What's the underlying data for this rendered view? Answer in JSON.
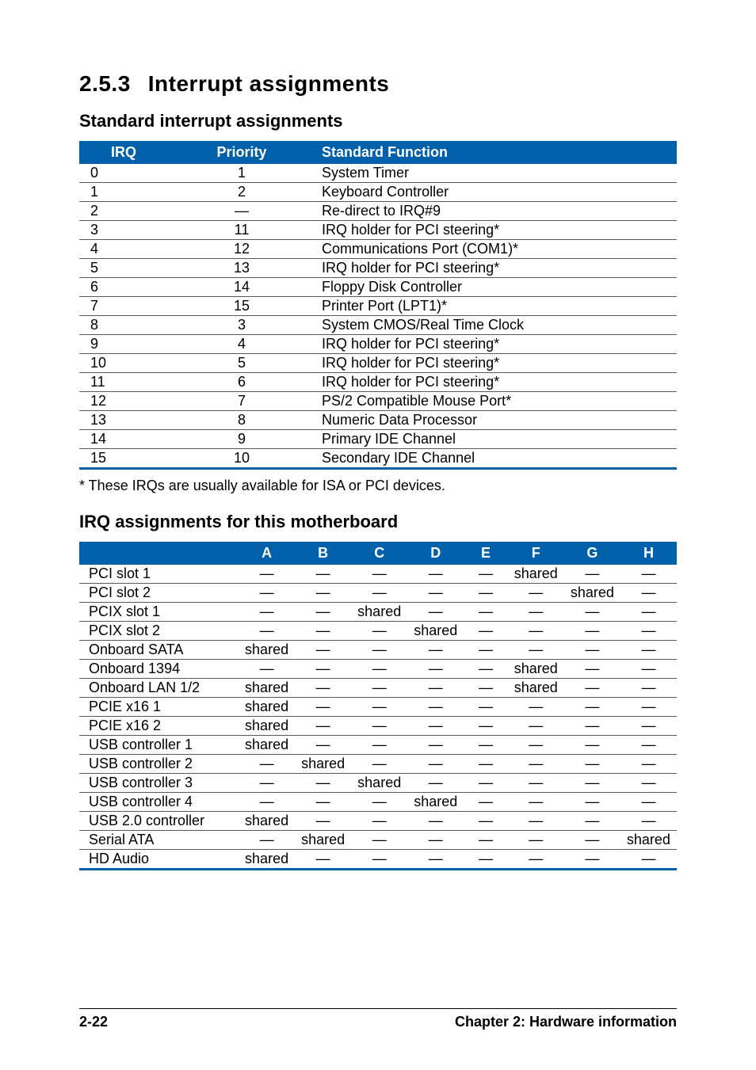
{
  "section": {
    "number": "2.5.3",
    "title": "Interrupt assignments",
    "sub1": "Standard interrupt assignments",
    "sub2": "IRQ assignments for this motherboard"
  },
  "table1": {
    "headers": {
      "irq": "IRQ",
      "priority": "Priority",
      "func": "Standard Function"
    },
    "rows": [
      {
        "irq": "0",
        "pri": "1",
        "func": "System Timer"
      },
      {
        "irq": "1",
        "pri": "2",
        "func": "Keyboard Controller"
      },
      {
        "irq": "2",
        "pri": "—",
        "func": "Re-direct to IRQ#9"
      },
      {
        "irq": "3",
        "pri": "11",
        "func": "IRQ holder for PCI steering*"
      },
      {
        "irq": "4",
        "pri": "12",
        "func": "Communications Port (COM1)*"
      },
      {
        "irq": "5",
        "pri": "13",
        "func": "IRQ holder for PCI steering*"
      },
      {
        "irq": "6",
        "pri": "14",
        "func": "Floppy Disk Controller"
      },
      {
        "irq": "7",
        "pri": "15",
        "func": "Printer Port (LPT1)*"
      },
      {
        "irq": "8",
        "pri": "3",
        "func": "System CMOS/Real Time Clock"
      },
      {
        "irq": "9",
        "pri": "4",
        "func": "IRQ holder for PCI steering*"
      },
      {
        "irq": "10",
        "pri": "5",
        "func": "IRQ holder for PCI steering*"
      },
      {
        "irq": "11",
        "pri": "6",
        "func": "IRQ holder for PCI steering*"
      },
      {
        "irq": "12",
        "pri": "7",
        "func": "PS/2 Compatible Mouse Port*"
      },
      {
        "irq": "13",
        "pri": "8",
        "func": "Numeric Data Processor"
      },
      {
        "irq": "14",
        "pri": "9",
        "func": "Primary IDE Channel"
      },
      {
        "irq": "15",
        "pri": "10",
        "func": "Secondary IDE Channel"
      }
    ]
  },
  "note": "* These IRQs are usually available for ISA or PCI devices.",
  "table2": {
    "columns": [
      "A",
      "B",
      "C",
      "D",
      "E",
      "F",
      "G",
      "H"
    ],
    "rows": [
      {
        "label": "PCI slot 1",
        "cells": [
          "—",
          "—",
          "—",
          "—",
          "—",
          "shared",
          "—",
          "—"
        ]
      },
      {
        "label": "PCI slot 2",
        "cells": [
          "—",
          "—",
          "—",
          "—",
          "—",
          "—",
          "shared",
          "—"
        ]
      },
      {
        "label": "PCIX slot 1",
        "cells": [
          "—",
          "—",
          "shared",
          "—",
          "—",
          "—",
          "—",
          "—"
        ]
      },
      {
        "label": "PCIX slot 2",
        "cells": [
          "—",
          "—",
          "—",
          "shared",
          "—",
          "—",
          "—",
          "—"
        ]
      },
      {
        "label": "Onboard SATA",
        "cells": [
          "shared",
          "—",
          "—",
          "—",
          "—",
          "—",
          "—",
          "—"
        ]
      },
      {
        "label": "Onboard 1394",
        "cells": [
          "—",
          "—",
          "—",
          "—",
          "—",
          "shared",
          "—",
          "—"
        ]
      },
      {
        "label": "Onboard LAN 1/2",
        "cells": [
          "shared",
          "—",
          "—",
          "—",
          "—",
          "shared",
          "—",
          "—"
        ]
      },
      {
        "label": "PCIE x16 1",
        "cells": [
          "shared",
          "—",
          "—",
          "—",
          "—",
          "—",
          "—",
          "—"
        ]
      },
      {
        "label": "PCIE x16 2",
        "cells": [
          "shared",
          "—",
          "—",
          "—",
          "—",
          "—",
          "—",
          "—"
        ]
      },
      {
        "label": "USB controller 1",
        "cells": [
          "shared",
          "—",
          "—",
          "—",
          "—",
          "—",
          "—",
          "—"
        ]
      },
      {
        "label": "USB controller 2",
        "cells": [
          "—",
          "shared",
          "—",
          "—",
          "—",
          "—",
          "—",
          "—"
        ]
      },
      {
        "label": "USB controller 3",
        "cells": [
          "—",
          "—",
          "shared",
          "—",
          "—",
          "—",
          "—",
          "—"
        ]
      },
      {
        "label": "USB controller 4",
        "cells": [
          "—",
          "—",
          "—",
          "shared",
          "—",
          "—",
          "—",
          "—"
        ]
      },
      {
        "label": "USB 2.0 controller",
        "cells": [
          "shared",
          "—",
          "—",
          "—",
          "—",
          "—",
          "—",
          "—"
        ]
      },
      {
        "label": "Serial ATA",
        "cells": [
          "—",
          "shared",
          "—",
          "—",
          "—",
          "—",
          "—",
          "shared"
        ]
      },
      {
        "label": "HD Audio",
        "cells": [
          "shared",
          "—",
          "—",
          "—",
          "—",
          "—",
          "—",
          "—"
        ]
      }
    ]
  },
  "footer": {
    "left": "2-22",
    "right": "Chapter 2: Hardware information"
  },
  "style": {
    "header_bg": "#0060a9",
    "header_fg": "#ffffff",
    "row_border": "#5a5a5a",
    "bottom_border": "#0060a9",
    "body_font_size": 18,
    "heading_font_size": 28,
    "subhead_font_size": 22
  }
}
